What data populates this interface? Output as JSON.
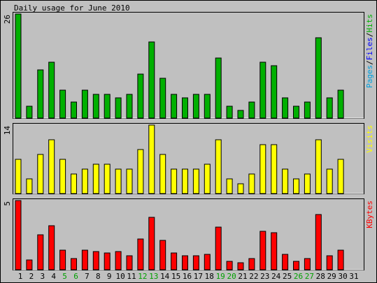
{
  "title": "Daily usage for June 2010",
  "colors": {
    "background": "#c0c0c0",
    "pages": "#00a0e0",
    "files": "#0000ff",
    "hits": "#00b000",
    "visits": "#ffff00",
    "kbytes": "#ff0000",
    "weekend_label": "#00a000",
    "weekday_label": "#000000",
    "slash": "#000000"
  },
  "chart_data": [
    {
      "type": "bar",
      "panel": "hits",
      "ymax_label": "26",
      "ylim": [
        0,
        26
      ],
      "legend": [
        "Pages",
        "Files",
        "Hits"
      ],
      "series": [
        {
          "name": "Hits",
          "values": [
            26,
            3,
            12,
            14,
            7,
            4,
            7,
            6,
            6,
            5,
            6,
            11,
            19,
            10,
            6,
            5,
            6,
            6,
            15,
            3,
            2,
            4,
            14,
            13,
            5,
            3,
            4,
            20,
            5,
            7,
            0
          ]
        }
      ]
    },
    {
      "type": "bar",
      "panel": "visits",
      "ymax_label": "14",
      "ylim": [
        0,
        14
      ],
      "legend": [
        "Visits"
      ],
      "series": [
        {
          "name": "Visits",
          "values": [
            7,
            3,
            8,
            11,
            7,
            4,
            5,
            6,
            6,
            5,
            5,
            9,
            14,
            8,
            5,
            5,
            5,
            6,
            11,
            3,
            2,
            4,
            10,
            10,
            5,
            3,
            4,
            11,
            5,
            7,
            0
          ]
        }
      ]
    },
    {
      "type": "bar",
      "panel": "kbytes",
      "ymax_label": "5",
      "ylim": [
        0,
        5
      ],
      "legend": [
        "KBytes"
      ],
      "series": [
        {
          "name": "KBytes",
          "values": [
            5.0,
            0.7,
            2.5,
            3.2,
            1.4,
            0.8,
            1.4,
            1.3,
            1.2,
            1.3,
            1.0,
            2.2,
            3.8,
            2.1,
            1.2,
            1.0,
            1.0,
            1.1,
            3.1,
            0.6,
            0.5,
            0.8,
            2.8,
            2.7,
            1.1,
            0.6,
            0.8,
            4.0,
            1.0,
            1.4,
            0
          ]
        }
      ]
    }
  ],
  "days": [
    "1",
    "2",
    "3",
    "4",
    "5",
    "6",
    "7",
    "8",
    "9",
    "10",
    "11",
    "12",
    "13",
    "14",
    "15",
    "16",
    "17",
    "18",
    "19",
    "20",
    "21",
    "22",
    "23",
    "24",
    "25",
    "26",
    "27",
    "28",
    "29",
    "30",
    "31"
  ],
  "weekend_days": [
    5,
    6,
    12,
    13,
    19,
    20,
    26,
    27
  ]
}
